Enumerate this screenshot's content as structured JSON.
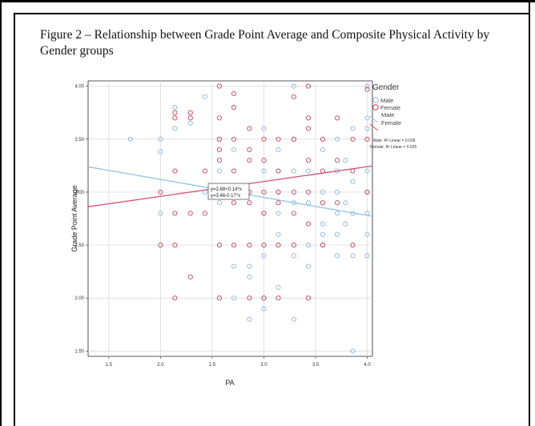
{
  "caption": "Figure 2 – Relationship between Grade Point Average and Composite Physical Activity by Gender groups",
  "chart_data": {
    "type": "scatter",
    "xlabel": "PA",
    "ylabel": "Grade Point Average",
    "xlim": [
      1.3,
      4.05
    ],
    "ylim": [
      1.45,
      4.05
    ],
    "x_ticks": [
      "1.5",
      "2.0",
      "2.5",
      "3.0",
      "3.5",
      "4.0"
    ],
    "y_ticks": [
      "1.50",
      "2.00",
      "2.50",
      "3.00",
      "3.50",
      "4.00"
    ],
    "grid": true,
    "legend": {
      "title": "Gender",
      "position": "right",
      "items": [
        "Male",
        "Female",
        "Male",
        "Female"
      ],
      "notes": [
        "Male: R² Linear = 0.028",
        "Female: R² Linear = 0.025"
      ]
    },
    "annotations": [
      "y=2.68+0.14*x",
      "y=3.46-0.17*x"
    ],
    "colors": {
      "male": "#8ab6dc",
      "female": "#c2405c",
      "male_line": "#8ec3e6",
      "female_line": "#d0506e"
    },
    "series": [
      {
        "name": "Male",
        "fit": {
          "intercept": 3.46,
          "slope": -0.17
        },
        "points": [
          [
            1.71,
            3.5
          ],
          [
            2.0,
            3.38
          ],
          [
            2.0,
            3.5
          ],
          [
            2.0,
            2.8
          ],
          [
            2.14,
            3.8
          ],
          [
            2.14,
            3.6
          ],
          [
            2.29,
            3.65
          ],
          [
            2.43,
            3.9
          ],
          [
            2.43,
            3.0
          ],
          [
            2.57,
            3.5
          ],
          [
            2.57,
            3.2
          ],
          [
            2.57,
            2.9
          ],
          [
            2.71,
            3.4
          ],
          [
            2.71,
            2.3
          ],
          [
            2.71,
            2.0
          ],
          [
            2.86,
            2.3
          ],
          [
            2.86,
            2.2
          ],
          [
            2.86,
            1.8
          ],
          [
            3.0,
            3.6
          ],
          [
            3.0,
            3.2
          ],
          [
            3.0,
            2.8
          ],
          [
            3.0,
            2.4
          ],
          [
            3.0,
            1.9
          ],
          [
            3.0,
            2.0
          ],
          [
            3.14,
            3.4
          ],
          [
            3.14,
            3.2
          ],
          [
            3.14,
            3.0
          ],
          [
            3.14,
            2.8
          ],
          [
            3.14,
            2.6
          ],
          [
            3.14,
            2.1
          ],
          [
            3.29,
            4.0
          ],
          [
            3.29,
            3.5
          ],
          [
            3.29,
            3.2
          ],
          [
            3.29,
            2.9
          ],
          [
            3.29,
            2.4
          ],
          [
            3.29,
            1.8
          ],
          [
            3.43,
            3.2
          ],
          [
            3.43,
            2.9
          ],
          [
            3.43,
            2.5
          ],
          [
            3.43,
            2.3
          ],
          [
            3.57,
            3.4
          ],
          [
            3.57,
            3.0
          ],
          [
            3.57,
            2.7
          ],
          [
            3.57,
            2.6
          ],
          [
            3.57,
            2.5
          ],
          [
            3.71,
            3.5
          ],
          [
            3.71,
            3.2
          ],
          [
            3.71,
            3.0
          ],
          [
            3.71,
            2.8
          ],
          [
            3.71,
            2.4
          ],
          [
            3.71,
            2.6
          ],
          [
            3.79,
            3.3
          ],
          [
            3.79,
            2.9
          ],
          [
            3.79,
            2.7
          ],
          [
            3.86,
            3.6
          ],
          [
            3.86,
            3.1
          ],
          [
            3.86,
            2.8
          ],
          [
            3.86,
            2.4
          ],
          [
            3.86,
            1.5
          ],
          [
            4.0,
            4.0
          ],
          [
            4.0,
            3.7
          ],
          [
            4.0,
            3.6
          ],
          [
            4.0,
            3.2
          ],
          [
            4.0,
            3.0
          ],
          [
            4.0,
            2.8
          ],
          [
            4.0,
            2.6
          ],
          [
            4.0,
            2.4
          ]
        ]
      },
      {
        "name": "Female",
        "fit": {
          "intercept": 2.68,
          "slope": 0.14
        },
        "points": [
          [
            2.0,
            3.0
          ],
          [
            2.0,
            2.5
          ],
          [
            2.14,
            3.75
          ],
          [
            2.14,
            3.7
          ],
          [
            2.14,
            3.2
          ],
          [
            2.14,
            2.8
          ],
          [
            2.14,
            2.5
          ],
          [
            2.14,
            2.0
          ],
          [
            2.29,
            3.75
          ],
          [
            2.29,
            3.7
          ],
          [
            2.29,
            2.8
          ],
          [
            2.29,
            2.2
          ],
          [
            2.43,
            3.2
          ],
          [
            2.43,
            2.8
          ],
          [
            2.57,
            4.0
          ],
          [
            2.57,
            3.7
          ],
          [
            2.57,
            3.5
          ],
          [
            2.57,
            3.4
          ],
          [
            2.57,
            3.3
          ],
          [
            2.57,
            3.0
          ],
          [
            2.57,
            2.5
          ],
          [
            2.57,
            2.0
          ],
          [
            2.71,
            3.93
          ],
          [
            2.71,
            3.8
          ],
          [
            2.71,
            3.5
          ],
          [
            2.71,
            3.2
          ],
          [
            2.71,
            2.9
          ],
          [
            2.71,
            2.5
          ],
          [
            2.86,
            3.6
          ],
          [
            2.86,
            3.4
          ],
          [
            2.86,
            3.3
          ],
          [
            2.86,
            3.0
          ],
          [
            2.86,
            2.9
          ],
          [
            2.86,
            2.5
          ],
          [
            2.86,
            2.0
          ],
          [
            3.0,
            3.5
          ],
          [
            3.0,
            3.3
          ],
          [
            3.0,
            3.0
          ],
          [
            3.0,
            2.8
          ],
          [
            3.0,
            2.5
          ],
          [
            3.0,
            2.0
          ],
          [
            3.14,
            3.5
          ],
          [
            3.14,
            3.2
          ],
          [
            3.14,
            3.0
          ],
          [
            3.14,
            2.9
          ],
          [
            3.14,
            2.5
          ],
          [
            3.14,
            2.0
          ],
          [
            3.29,
            3.9
          ],
          [
            3.29,
            3.5
          ],
          [
            3.29,
            3.0
          ],
          [
            3.29,
            2.8
          ],
          [
            3.29,
            2.5
          ],
          [
            3.43,
            4.0
          ],
          [
            3.43,
            3.7
          ],
          [
            3.43,
            3.6
          ],
          [
            3.43,
            3.3
          ],
          [
            3.43,
            3.0
          ],
          [
            3.43,
            2.7
          ],
          [
            3.43,
            2.0
          ],
          [
            3.57,
            3.5
          ],
          [
            3.57,
            3.2
          ],
          [
            3.57,
            2.9
          ],
          [
            3.57,
            2.5
          ],
          [
            3.71,
            3.7
          ],
          [
            3.71,
            3.3
          ],
          [
            3.71,
            2.9
          ],
          [
            3.86,
            3.5
          ],
          [
            3.86,
            3.2
          ],
          [
            3.86,
            2.5
          ],
          [
            4.0,
            3.97
          ],
          [
            4.0,
            3.5
          ],
          [
            4.0,
            3.0
          ]
        ]
      }
    ]
  }
}
